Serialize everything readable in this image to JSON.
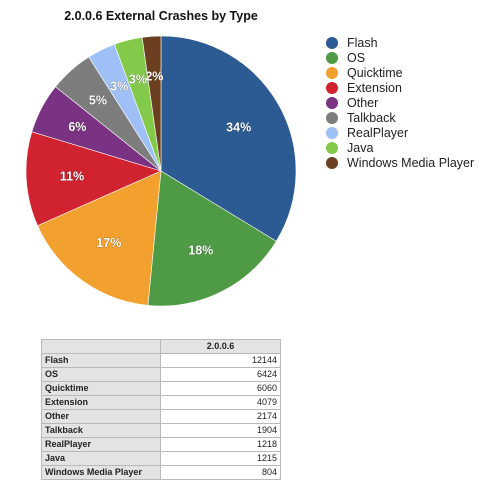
{
  "chart_data": {
    "type": "pie",
    "title": "2.0.0.6 External Crashes by Type",
    "series_name": "2.0.0.6",
    "categories": [
      "Flash",
      "OS",
      "Quicktime",
      "Extension",
      "Other",
      "Talkback",
      "RealPlayer",
      "Java",
      "Windows Media Player"
    ],
    "values": [
      12144,
      6424,
      6060,
      4079,
      2174,
      1904,
      1218,
      1215,
      804
    ],
    "percent_labels": [
      "34%",
      "18%",
      "17%",
      "11%",
      "6%",
      "5%",
      "3%",
      "3%",
      "2%"
    ],
    "colors": [
      "#2c5b94",
      "#4e9a45",
      "#f2a02e",
      "#d0222f",
      "#7a3382",
      "#7d7d7d",
      "#9ec0f6",
      "#83c94a",
      "#6b3f1f"
    ],
    "legend_position": "right",
    "table": {
      "header": "2.0.0.6",
      "rows": [
        {
          "name": "Flash",
          "value": "12144"
        },
        {
          "name": "OS",
          "value": "6424"
        },
        {
          "name": "Quicktime",
          "value": "6060"
        },
        {
          "name": "Extension",
          "value": "4079"
        },
        {
          "name": "Other",
          "value": "2174"
        },
        {
          "name": "Talkback",
          "value": "1904"
        },
        {
          "name": "RealPlayer",
          "value": "1218"
        },
        {
          "name": "Java",
          "value": "1215"
        },
        {
          "name": "Windows Media Player",
          "value": "804"
        }
      ]
    }
  }
}
